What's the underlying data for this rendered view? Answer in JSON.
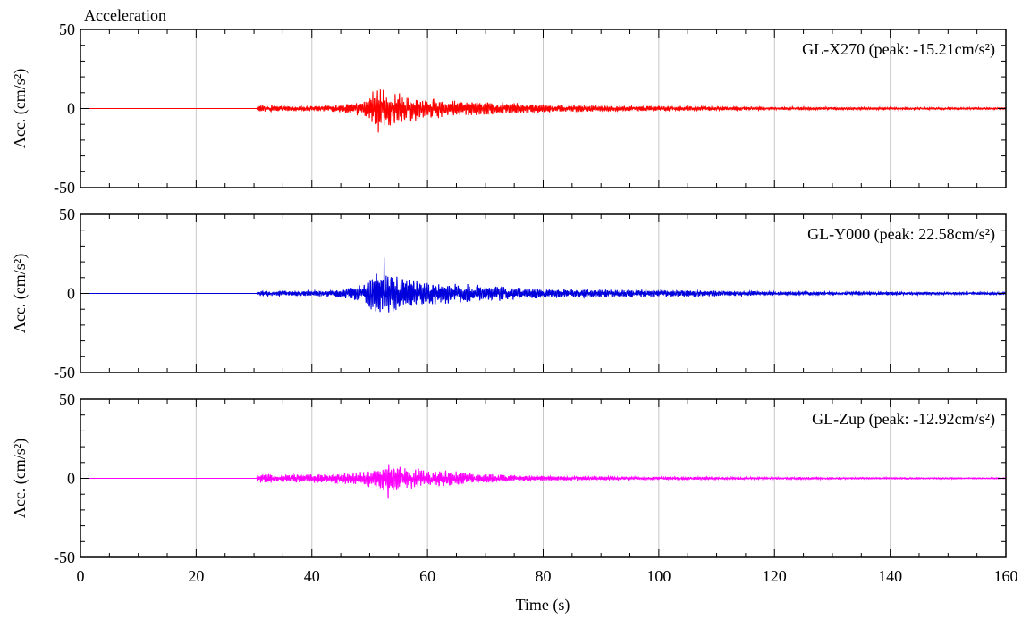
{
  "chart_data": {
    "type": "line",
    "title": "Acceleration",
    "xlabel": "Time (s)",
    "xlim": [
      0,
      160
    ],
    "x_ticks": [
      "0",
      "20",
      "40",
      "60",
      "80",
      "100",
      "120",
      "140",
      "160"
    ],
    "vertical_grid_x": [
      20,
      40,
      60,
      80,
      100,
      120,
      140
    ],
    "grid": "vertical",
    "legend_placement": "top-right (per panel)",
    "panels": [
      {
        "id": "x270",
        "name": "GL-X270",
        "annotation": "GL-X270 (peak: -15.21cm/s²)",
        "peak": -15.21,
        "peak_time": 51.5,
        "color": "#ff0000",
        "ylabel": "Acc. (cm/s²)",
        "ylim": [
          -50,
          50
        ],
        "y_ticks": [
          "50",
          "0",
          "-50"
        ],
        "onset_time": 30.5,
        "envelope_t": [
          0,
          30.4,
          31,
          34,
          40,
          45,
          49,
          51,
          53,
          56,
          60,
          65,
          70,
          75,
          80,
          90,
          100,
          110,
          120,
          140,
          160
        ],
        "envelope_a": [
          0,
          0,
          2.2,
          1.8,
          1.6,
          2.5,
          5,
          13,
          12,
          9,
          7.5,
          5,
          4,
          3.8,
          2.5,
          2,
          1.6,
          1.2,
          0.9,
          0.7,
          0.6
        ]
      },
      {
        "id": "y000",
        "name": "GL-Y000",
        "annotation": "GL-Y000 (peak: 22.58cm/s²)",
        "peak": 22.58,
        "peak_time": 52.5,
        "color": "#0000dd",
        "ylabel": "Acc. (cm/s²)",
        "ylim": [
          -50,
          50
        ],
        "y_ticks": [
          "50",
          "0",
          "-50"
        ],
        "onset_time": 30.5,
        "envelope_t": [
          0,
          30.4,
          31,
          34,
          40,
          45,
          49,
          51,
          53,
          56,
          60,
          65,
          70,
          75,
          80,
          90,
          100,
          110,
          120,
          140,
          160
        ],
        "envelope_a": [
          0,
          0,
          1.8,
          1.6,
          1.8,
          2.5,
          6,
          15,
          14,
          10,
          8,
          6.5,
          5.5,
          4,
          3,
          2.6,
          2.4,
          1.8,
          1.2,
          0.9,
          0.7
        ]
      },
      {
        "id": "zup",
        "name": "GL-Zup",
        "annotation": "GL-Zup (peak: -12.92cm/s²)",
        "peak": -12.92,
        "peak_time": 53.2,
        "color": "#ff00ff",
        "ylabel": "Acc. (cm/s²)",
        "ylim": [
          -50,
          50
        ],
        "y_ticks": [
          "50",
          "0",
          "-50"
        ],
        "onset_time": 30.5,
        "envelope_t": [
          0,
          30.4,
          31,
          34,
          40,
          45,
          49,
          51,
          53,
          56,
          60,
          65,
          70,
          75,
          80,
          90,
          100,
          110,
          120,
          140,
          160
        ],
        "envelope_a": [
          0,
          0,
          3.5,
          2.5,
          3,
          3.5,
          4.5,
          7,
          9,
          7,
          6,
          4.5,
          3,
          2.2,
          1.6,
          1.2,
          1,
          0.8,
          0.6,
          0.5,
          0.4
        ]
      }
    ]
  }
}
